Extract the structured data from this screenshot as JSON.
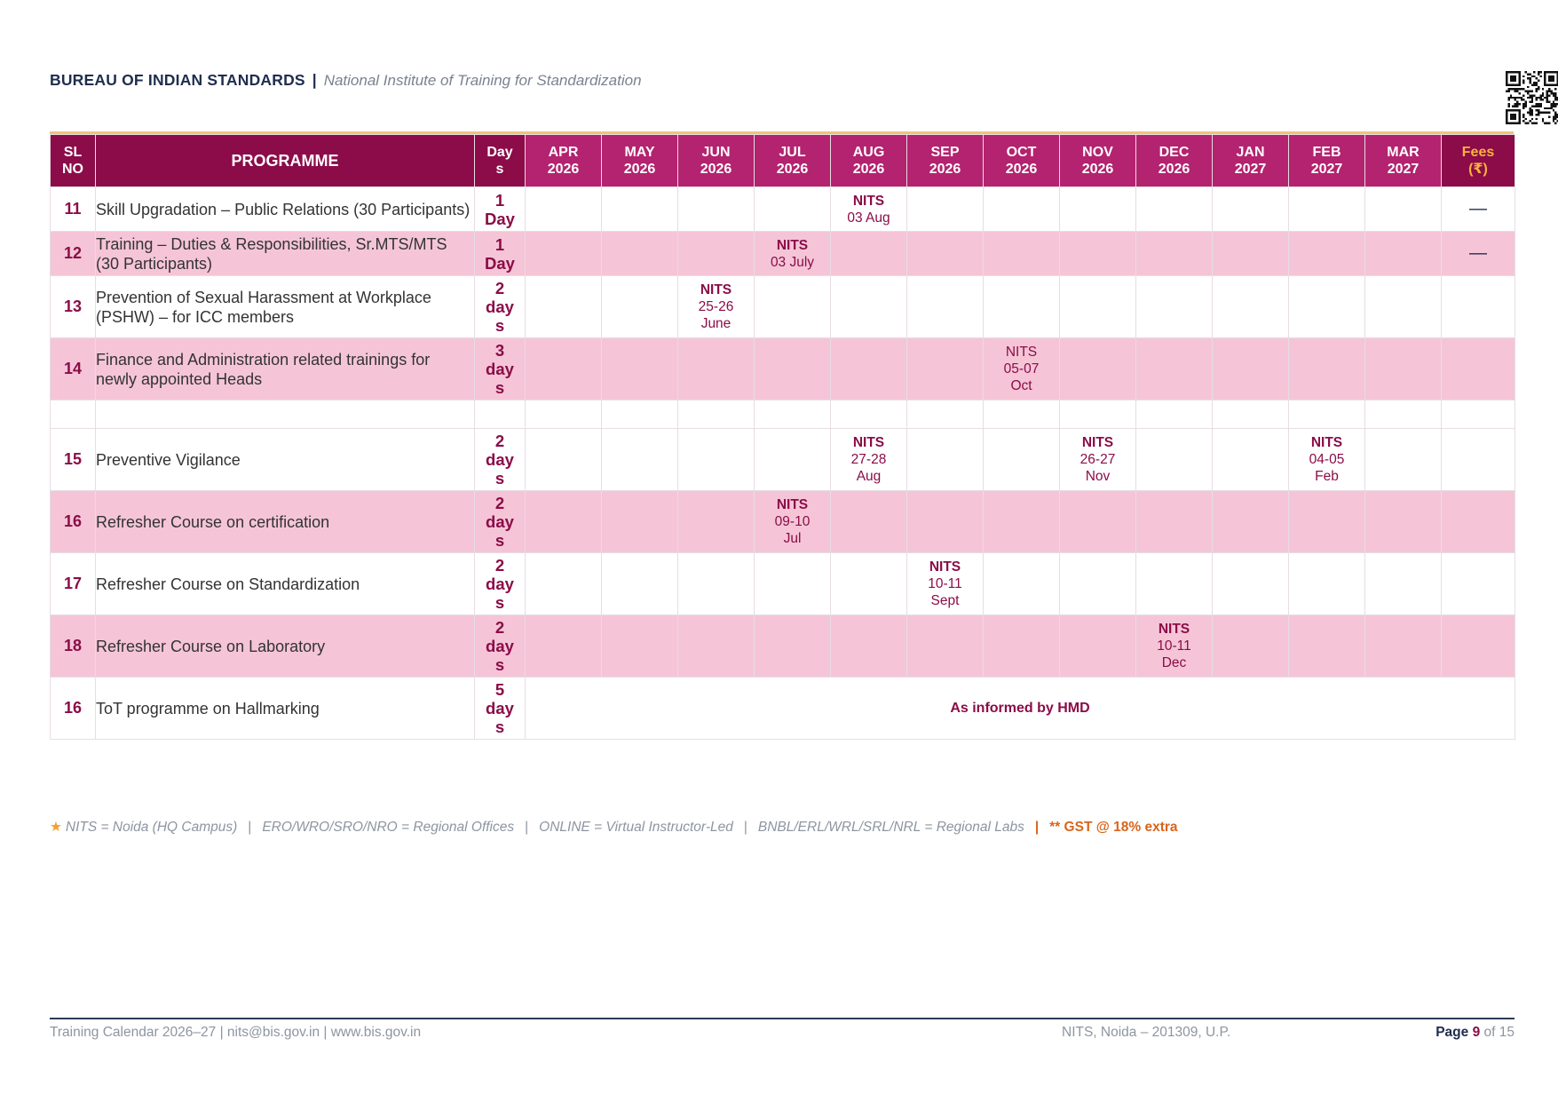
{
  "header": {
    "org": "BUREAU OF INDIAN STANDARDS",
    "separator": "|",
    "subtitle": "National Institute of Training for Standardization"
  },
  "table": {
    "headers": {
      "slno_line1": "SL",
      "slno_line2": "NO",
      "programme": "PROGRAMME",
      "days_line1": "Day",
      "days_line2": "s",
      "months": [
        {
          "m": "APR",
          "y": "2026"
        },
        {
          "m": "MAY",
          "y": "2026"
        },
        {
          "m": "JUN",
          "y": "2026"
        },
        {
          "m": "JUL",
          "y": "2026"
        },
        {
          "m": "AUG",
          "y": "2026"
        },
        {
          "m": "SEP",
          "y": "2026"
        },
        {
          "m": "OCT",
          "y": "2026"
        },
        {
          "m": "NOV",
          "y": "2026"
        },
        {
          "m": "DEC",
          "y": "2026"
        },
        {
          "m": "JAN",
          "y": "2027"
        },
        {
          "m": "FEB",
          "y": "2027"
        },
        {
          "m": "MAR",
          "y": "2027"
        }
      ],
      "fees_line1": "Fees",
      "fees_line2": "(₹)"
    },
    "rows": [
      {
        "sl": "11",
        "programme": "Skill Upgradation – Public Relations (30 Participants)",
        "days": [
          "1",
          "Day"
        ],
        "alt": false,
        "sessions": {
          "4": {
            "loc": "NITS",
            "date": [
              "03 Aug"
            ]
          }
        },
        "fees": "—"
      },
      {
        "sl": "12",
        "programme": "Training – Duties & Responsibilities, Sr.MTS/MTS (30 Participants)",
        "days": [
          "1",
          "Day"
        ],
        "alt": true,
        "sessions": {
          "3": {
            "loc": "NITS",
            "date": [
              "03 July"
            ]
          }
        },
        "fees": "—"
      },
      {
        "sl": "13",
        "programme": "Prevention of Sexual Harassment at Workplace (PSHW) – for ICC members",
        "days": [
          "2",
          "day",
          "s"
        ],
        "alt": false,
        "sessions": {
          "2": {
            "loc": "NITS",
            "date": [
              "25-26",
              "June"
            ]
          }
        },
        "fees": ""
      },
      {
        "sl": "14",
        "programme": "Finance and Administration related trainings for newly appointed Heads",
        "days": [
          "3",
          "day",
          "s"
        ],
        "alt": true,
        "sessions": {
          "6": {
            "loc": "NITS",
            "plain": true,
            "date": [
              "05-07",
              "Oct"
            ]
          }
        },
        "fees": ""
      },
      {
        "sl": "",
        "programme": "",
        "days": [],
        "alt": false,
        "blank": true,
        "sessions": {},
        "fees": ""
      },
      {
        "sl": "15",
        "programme": "Preventive Vigilance",
        "days": [
          "2",
          "day",
          "s"
        ],
        "alt": false,
        "sessions": {
          "4": {
            "loc": "NITS",
            "date": [
              "27-28",
              "Aug"
            ]
          },
          "7": {
            "loc": "NITS",
            "date": [
              "26-27",
              "Nov"
            ]
          },
          "10": {
            "loc": "NITS",
            "date": [
              "04-05",
              "Feb"
            ]
          }
        },
        "fees": ""
      },
      {
        "sl": "16",
        "programme": "Refresher Course on certification",
        "days": [
          "2",
          "day",
          "s"
        ],
        "alt": true,
        "sessions": {
          "3": {
            "loc": "NITS",
            "date": [
              "09-10",
              "Jul"
            ]
          }
        },
        "fees": ""
      },
      {
        "sl": "17",
        "programme": "Refresher Course on Standardization",
        "days": [
          "2",
          "day",
          "s"
        ],
        "alt": false,
        "sessions": {
          "5": {
            "loc": "NITS",
            "date": [
              "10-11",
              "Sept"
            ]
          }
        },
        "fees": ""
      },
      {
        "sl": "18",
        "programme": "Refresher Course on Laboratory",
        "days": [
          "2",
          "day",
          "s"
        ],
        "alt": true,
        "sessions": {
          "8": {
            "loc": "NITS",
            "date": [
              "10-11",
              "Dec"
            ]
          }
        },
        "fees": ""
      },
      {
        "sl": "16",
        "programme": "ToT programme on Hallmarking",
        "days": [
          "5",
          "day",
          "s"
        ],
        "alt": false,
        "span_message": "As informed by  HMD",
        "sessions": {},
        "fees": ""
      }
    ]
  },
  "legend": {
    "star": "★",
    "items": [
      "NITS = Noida (HQ Campus)",
      "ERO/WRO/SRO/NRO = Regional Offices",
      "ONLINE = Virtual Instructor-Led",
      "BNBL/ERL/WRL/SRL/NRL = Regional Labs"
    ],
    "gst": "** GST @ 18% extra"
  },
  "footer": {
    "left": "Training Calendar 2026–27  |  nits@bis.gov.in  |  www.bis.gov.in",
    "mid": "NITS, Noida – 201309, U.P.",
    "page_word": "Page",
    "page_num": "9",
    "page_of": "of 15"
  },
  "icons": {
    "qr": "qr-code-icon"
  },
  "colors": {
    "brand": "#8b0c48",
    "month_header": "#b3236f",
    "alt_row": "#f5c5d7",
    "fees_header_text": "#f7b33c",
    "accent_orange": "#d9641c"
  }
}
